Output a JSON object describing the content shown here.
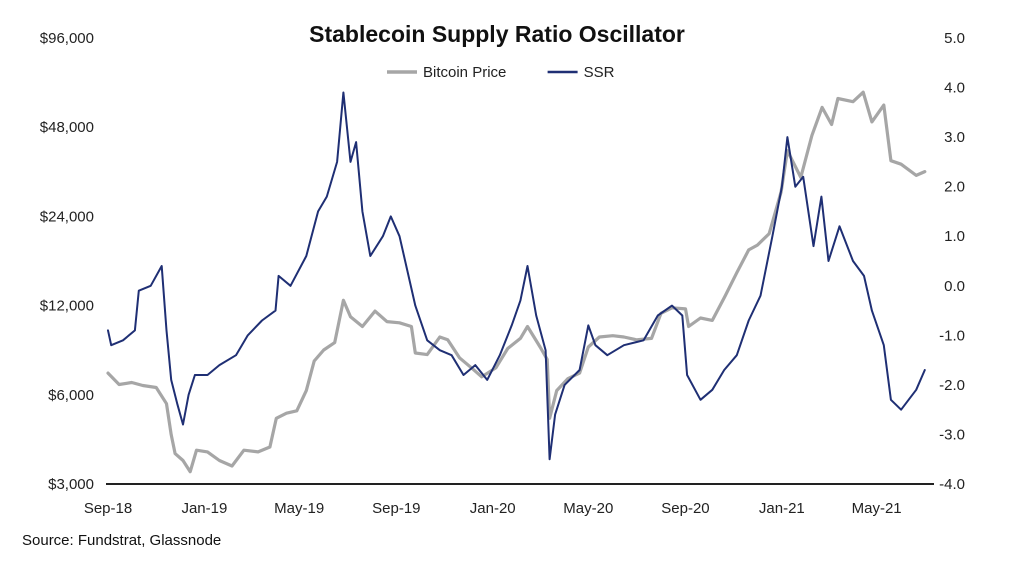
{
  "chart_data": {
    "type": "line",
    "title": "Stablecoin Supply Ratio Oscillator",
    "xlabel": "",
    "ylabel": "",
    "x_range": [
      "2018-09-01",
      "2021-07-05"
    ],
    "x_ticks": [
      {
        "date": "2018-09-01",
        "label": "Sep-18"
      },
      {
        "date": "2019-01-01",
        "label": "Jan-19"
      },
      {
        "date": "2019-05-01",
        "label": "May-19"
      },
      {
        "date": "2019-09-01",
        "label": "Sep-19"
      },
      {
        "date": "2020-01-01",
        "label": "Jan-20"
      },
      {
        "date": "2020-05-01",
        "label": "May-20"
      },
      {
        "date": "2020-09-01",
        "label": "Sep-20"
      },
      {
        "date": "2021-01-01",
        "label": "Jan-21"
      },
      {
        "date": "2021-05-01",
        "label": "May-21"
      }
    ],
    "y_left": {
      "scale": "log",
      "range": [
        3000,
        96000
      ],
      "ticks": [
        {
          "value": 3000,
          "label": "$3,000"
        },
        {
          "value": 6000,
          "label": "$6,000"
        },
        {
          "value": 12000,
          "label": "$12,000"
        },
        {
          "value": 24000,
          "label": "$24,000"
        },
        {
          "value": 48000,
          "label": "$48,000"
        },
        {
          "value": 96000,
          "label": "$96,000"
        }
      ]
    },
    "y_right": {
      "scale": "linear",
      "range": [
        -4.0,
        5.0
      ],
      "ticks": [
        {
          "value": 5.0,
          "label": "5.0"
        },
        {
          "value": 4.0,
          "label": "4.0"
        },
        {
          "value": 3.0,
          "label": "3.0"
        },
        {
          "value": 2.0,
          "label": "2.0"
        },
        {
          "value": 1.0,
          "label": "1.0"
        },
        {
          "value": 0.0,
          "label": "0.0"
        },
        {
          "value": -1.0,
          "label": "-1.0"
        },
        {
          "value": -2.0,
          "label": "-2.0"
        },
        {
          "value": -3.0,
          "label": "-3.0"
        },
        {
          "value": -4.0,
          "label": "-4.0"
        }
      ]
    },
    "grid": false,
    "legend": "top-center",
    "series": [
      {
        "name": "Bitcoin Price",
        "axis": "left",
        "color": "#a6a6a6",
        "points": [
          [
            "2018-09-01",
            7100
          ],
          [
            "2018-09-15",
            6500
          ],
          [
            "2018-10-01",
            6600
          ],
          [
            "2018-10-15",
            6450
          ],
          [
            "2018-11-01",
            6350
          ],
          [
            "2018-11-14",
            5600
          ],
          [
            "2018-11-20",
            4400
          ],
          [
            "2018-11-25",
            3800
          ],
          [
            "2018-12-05",
            3600
          ],
          [
            "2018-12-14",
            3300
          ],
          [
            "2018-12-22",
            3900
          ],
          [
            "2019-01-05",
            3850
          ],
          [
            "2019-01-20",
            3600
          ],
          [
            "2019-02-05",
            3450
          ],
          [
            "2019-02-20",
            3900
          ],
          [
            "2019-03-10",
            3850
          ],
          [
            "2019-03-25",
            4000
          ],
          [
            "2019-04-02",
            5000
          ],
          [
            "2019-04-15",
            5200
          ],
          [
            "2019-04-28",
            5300
          ],
          [
            "2019-05-10",
            6200
          ],
          [
            "2019-05-20",
            7800
          ],
          [
            "2019-06-01",
            8500
          ],
          [
            "2019-06-15",
            9000
          ],
          [
            "2019-06-26",
            12500
          ],
          [
            "2019-07-05",
            11000
          ],
          [
            "2019-07-20",
            10200
          ],
          [
            "2019-08-05",
            11500
          ],
          [
            "2019-08-20",
            10600
          ],
          [
            "2019-09-05",
            10500
          ],
          [
            "2019-09-20",
            10200
          ],
          [
            "2019-09-25",
            8300
          ],
          [
            "2019-10-10",
            8200
          ],
          [
            "2019-10-26",
            9400
          ],
          [
            "2019-11-05",
            9200
          ],
          [
            "2019-11-20",
            8000
          ],
          [
            "2019-12-05",
            7400
          ],
          [
            "2019-12-18",
            6900
          ],
          [
            "2020-01-05",
            7400
          ],
          [
            "2020-01-20",
            8600
          ],
          [
            "2020-02-05",
            9300
          ],
          [
            "2020-02-14",
            10200
          ],
          [
            "2020-03-01",
            8700
          ],
          [
            "2020-03-10",
            7900
          ],
          [
            "2020-03-13",
            5000
          ],
          [
            "2020-03-22",
            6200
          ],
          [
            "2020-04-05",
            6800
          ],
          [
            "2020-04-20",
            7100
          ],
          [
            "2020-05-01",
            8700
          ],
          [
            "2020-05-15",
            9400
          ],
          [
            "2020-06-01",
            9500
          ],
          [
            "2020-06-15",
            9400
          ],
          [
            "2020-07-01",
            9200
          ],
          [
            "2020-07-20",
            9300
          ],
          [
            "2020-08-01",
            11300
          ],
          [
            "2020-08-15",
            11800
          ],
          [
            "2020-09-01",
            11700
          ],
          [
            "2020-09-05",
            10200
          ],
          [
            "2020-09-20",
            10900
          ],
          [
            "2020-10-05",
            10700
          ],
          [
            "2020-10-21",
            12900
          ],
          [
            "2020-11-05",
            15500
          ],
          [
            "2020-11-20",
            18500
          ],
          [
            "2020-12-01",
            19200
          ],
          [
            "2020-12-16",
            21000
          ],
          [
            "2020-12-31",
            29000
          ],
          [
            "2021-01-08",
            40000
          ],
          [
            "2021-01-25",
            32500
          ],
          [
            "2021-02-08",
            45000
          ],
          [
            "2021-02-21",
            56000
          ],
          [
            "2021-03-05",
            49000
          ],
          [
            "2021-03-13",
            60000
          ],
          [
            "2021-04-01",
            58500
          ],
          [
            "2021-04-14",
            63000
          ],
          [
            "2021-04-25",
            50000
          ],
          [
            "2021-05-10",
            57000
          ],
          [
            "2021-05-19",
            37000
          ],
          [
            "2021-06-01",
            36000
          ],
          [
            "2021-06-20",
            33000
          ],
          [
            "2021-07-01",
            34000
          ]
        ]
      },
      {
        "name": "SSR",
        "axis": "right",
        "color": "#1f2f74",
        "points": [
          [
            "2018-09-01",
            -0.9
          ],
          [
            "2018-09-05",
            -1.2
          ],
          [
            "2018-09-20",
            -1.1
          ],
          [
            "2018-10-05",
            -0.9
          ],
          [
            "2018-10-10",
            -0.1
          ],
          [
            "2018-10-25",
            0.0
          ],
          [
            "2018-11-08",
            0.4
          ],
          [
            "2018-11-14",
            -0.9
          ],
          [
            "2018-11-20",
            -1.9
          ],
          [
            "2018-11-28",
            -2.4
          ],
          [
            "2018-12-05",
            -2.8
          ],
          [
            "2018-12-12",
            -2.2
          ],
          [
            "2018-12-20",
            -1.8
          ],
          [
            "2019-01-05",
            -1.8
          ],
          [
            "2019-01-20",
            -1.6
          ],
          [
            "2019-02-10",
            -1.4
          ],
          [
            "2019-02-25",
            -1.0
          ],
          [
            "2019-03-15",
            -0.7
          ],
          [
            "2019-04-01",
            -0.5
          ],
          [
            "2019-04-05",
            0.2
          ],
          [
            "2019-04-20",
            0.0
          ],
          [
            "2019-05-10",
            0.6
          ],
          [
            "2019-05-25",
            1.5
          ],
          [
            "2019-06-05",
            1.8
          ],
          [
            "2019-06-18",
            2.5
          ],
          [
            "2019-06-26",
            3.9
          ],
          [
            "2019-07-05",
            2.5
          ],
          [
            "2019-07-12",
            2.9
          ],
          [
            "2019-07-20",
            1.5
          ],
          [
            "2019-07-30",
            0.6
          ],
          [
            "2019-08-15",
            1.0
          ],
          [
            "2019-08-25",
            1.4
          ],
          [
            "2019-09-05",
            1.0
          ],
          [
            "2019-09-25",
            -0.4
          ],
          [
            "2019-10-10",
            -1.1
          ],
          [
            "2019-10-26",
            -1.3
          ],
          [
            "2019-11-10",
            -1.4
          ],
          [
            "2019-11-25",
            -1.8
          ],
          [
            "2019-12-10",
            -1.6
          ],
          [
            "2019-12-25",
            -1.9
          ],
          [
            "2020-01-10",
            -1.4
          ],
          [
            "2020-01-25",
            -0.8
          ],
          [
            "2020-02-05",
            -0.3
          ],
          [
            "2020-02-14",
            0.4
          ],
          [
            "2020-02-25",
            -0.6
          ],
          [
            "2020-03-08",
            -1.3
          ],
          [
            "2020-03-13",
            -3.5
          ],
          [
            "2020-03-20",
            -2.6
          ],
          [
            "2020-04-01",
            -2.0
          ],
          [
            "2020-04-20",
            -1.7
          ],
          [
            "2020-05-01",
            -0.8
          ],
          [
            "2020-05-10",
            -1.2
          ],
          [
            "2020-05-25",
            -1.4
          ],
          [
            "2020-06-15",
            -1.2
          ],
          [
            "2020-07-10",
            -1.1
          ],
          [
            "2020-07-28",
            -0.6
          ],
          [
            "2020-08-15",
            -0.4
          ],
          [
            "2020-08-28",
            -0.6
          ],
          [
            "2020-09-03",
            -1.8
          ],
          [
            "2020-09-20",
            -2.3
          ],
          [
            "2020-10-05",
            -2.1
          ],
          [
            "2020-10-20",
            -1.7
          ],
          [
            "2020-11-05",
            -1.4
          ],
          [
            "2020-11-20",
            -0.7
          ],
          [
            "2020-12-05",
            -0.2
          ],
          [
            "2020-12-20",
            1.0
          ],
          [
            "2021-01-01",
            2.0
          ],
          [
            "2021-01-08",
            3.0
          ],
          [
            "2021-01-18",
            2.0
          ],
          [
            "2021-01-28",
            2.2
          ],
          [
            "2021-02-10",
            0.8
          ],
          [
            "2021-02-20",
            1.8
          ],
          [
            "2021-03-01",
            0.5
          ],
          [
            "2021-03-15",
            1.2
          ],
          [
            "2021-04-01",
            0.5
          ],
          [
            "2021-04-15",
            0.2
          ],
          [
            "2021-04-25",
            -0.5
          ],
          [
            "2021-05-10",
            -1.2
          ],
          [
            "2021-05-19",
            -2.3
          ],
          [
            "2021-06-01",
            -2.5
          ],
          [
            "2021-06-20",
            -2.1
          ],
          [
            "2021-07-01",
            -1.7
          ]
        ]
      }
    ]
  },
  "source_note": "Source: Fundstrat, Glassnode"
}
